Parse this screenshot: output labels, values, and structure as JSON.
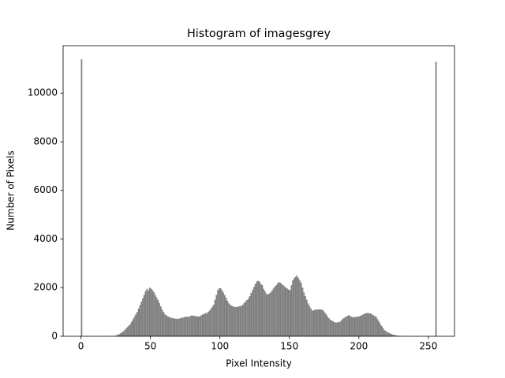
{
  "chart_data": {
    "type": "histogram",
    "title": "Histogram of imagesgrey",
    "x_label": "Pixel Intensity",
    "y_label": "Number of Pixels",
    "color": "#808080",
    "bins": [
      0,
      1,
      2,
      3,
      4,
      5,
      6,
      7,
      8,
      9,
      10,
      11,
      12,
      13,
      14,
      15,
      16,
      17,
      18,
      19,
      20,
      21,
      22,
      23,
      24,
      25,
      26,
      27,
      28,
      29,
      30,
      31,
      32,
      33,
      34,
      35,
      36,
      37,
      38,
      39,
      40,
      41,
      42,
      43,
      44,
      45,
      46,
      47,
      48,
      49,
      50,
      51,
      52,
      53,
      54,
      55,
      56,
      57,
      58,
      59,
      60,
      61,
      62,
      63,
      64,
      65,
      66,
      67,
      68,
      69,
      70,
      71,
      72,
      73,
      74,
      75,
      76,
      77,
      78,
      79,
      80,
      81,
      82,
      83,
      84,
      85,
      86,
      87,
      88,
      89,
      90,
      91,
      92,
      93,
      94,
      95,
      96,
      97,
      98,
      99,
      100,
      101,
      102,
      103,
      104,
      105,
      106,
      107,
      108,
      109,
      110,
      111,
      112,
      113,
      114,
      115,
      116,
      117,
      118,
      119,
      120,
      121,
      122,
      123,
      124,
      125,
      126,
      127,
      128,
      129,
      130,
      131,
      132,
      133,
      134,
      135,
      136,
      137,
      138,
      139,
      140,
      141,
      142,
      143,
      144,
      145,
      146,
      147,
      148,
      149,
      150,
      151,
      152,
      153,
      154,
      155,
      156,
      157,
      158,
      159,
      160,
      161,
      162,
      163,
      164,
      165,
      166,
      167,
      168,
      169,
      170,
      171,
      172,
      173,
      174,
      175,
      176,
      177,
      178,
      179,
      180,
      181,
      182,
      183,
      184,
      185,
      186,
      187,
      188,
      189,
      190,
      191,
      192,
      193,
      194,
      195,
      196,
      197,
      198,
      199,
      200,
      201,
      202,
      203,
      204,
      205,
      206,
      207,
      208,
      209,
      210,
      211,
      212,
      213,
      214,
      215,
      216,
      217,
      218,
      219,
      220,
      221,
      222,
      223,
      224,
      225,
      226,
      227,
      228,
      229,
      230,
      231,
      232,
      233,
      234,
      235,
      236,
      237,
      238,
      239,
      240,
      241,
      242,
      243,
      244,
      245,
      246,
      247,
      248,
      249,
      250,
      251,
      252,
      253,
      254,
      255,
      256
    ],
    "values": [
      11390,
      0,
      0,
      0,
      0,
      0,
      0,
      0,
      0,
      0,
      0,
      0,
      0,
      0,
      0,
      0,
      0,
      0,
      0,
      0,
      2,
      5,
      8,
      12,
      20,
      30,
      60,
      90,
      120,
      160,
      200,
      260,
      320,
      380,
      440,
      500,
      600,
      700,
      800,
      900,
      1000,
      1140,
      1280,
      1420,
      1560,
      1700,
      1850,
      1950,
      1880,
      2000,
      1960,
      1900,
      1820,
      1700,
      1600,
      1500,
      1370,
      1230,
      1100,
      1000,
      900,
      860,
      820,
      790,
      770,
      750,
      740,
      730,
      720,
      720,
      720,
      740,
      760,
      770,
      790,
      800,
      810,
      790,
      830,
      850,
      850,
      840,
      830,
      810,
      820,
      820,
      860,
      890,
      920,
      950,
      950,
      1000,
      1050,
      1130,
      1210,
      1300,
      1500,
      1700,
      1900,
      1970,
      1980,
      1900,
      1800,
      1700,
      1580,
      1460,
      1350,
      1300,
      1260,
      1230,
      1200,
      1200,
      1210,
      1230,
      1240,
      1250,
      1300,
      1370,
      1430,
      1490,
      1550,
      1650,
      1780,
      1900,
      2030,
      2150,
      2250,
      2280,
      2250,
      2150,
      2100,
      1950,
      1850,
      1750,
      1720,
      1760,
      1800,
      1880,
      1960,
      2040,
      2100,
      2180,
      2230,
      2200,
      2150,
      2100,
      2050,
      2000,
      1960,
      1920,
      1900,
      2100,
      2300,
      2400,
      2450,
      2500,
      2400,
      2300,
      2200,
      2000,
      1800,
      1650,
      1500,
      1350,
      1250,
      1150,
      1050,
      1070,
      1090,
      1100,
      1100,
      1110,
      1100,
      1100,
      1050,
      980,
      900,
      820,
      740,
      680,
      650,
      610,
      580,
      560,
      570,
      580,
      600,
      660,
      720,
      760,
      800,
      830,
      860,
      850,
      800,
      790,
      780,
      790,
      800,
      810,
      820,
      850,
      880,
      910,
      940,
      950,
      960,
      940,
      940,
      900,
      860,
      830,
      800,
      700,
      600,
      500,
      420,
      330,
      250,
      210,
      170,
      140,
      120,
      90,
      70,
      55,
      40,
      30,
      20,
      15,
      10,
      6,
      4,
      2,
      1,
      0,
      0,
      0,
      0,
      0,
      0,
      0,
      0,
      0,
      0,
      0,
      0,
      0,
      0,
      0,
      0,
      0,
      0,
      0,
      0,
      11290
    ],
    "xlim": [
      -12.8,
      268.8
    ],
    "ylim": [
      0,
      11950
    ],
    "xticks": [
      0,
      50,
      100,
      150,
      200,
      250
    ],
    "yticks": [
      0,
      2000,
      4000,
      6000,
      8000,
      10000
    ]
  }
}
